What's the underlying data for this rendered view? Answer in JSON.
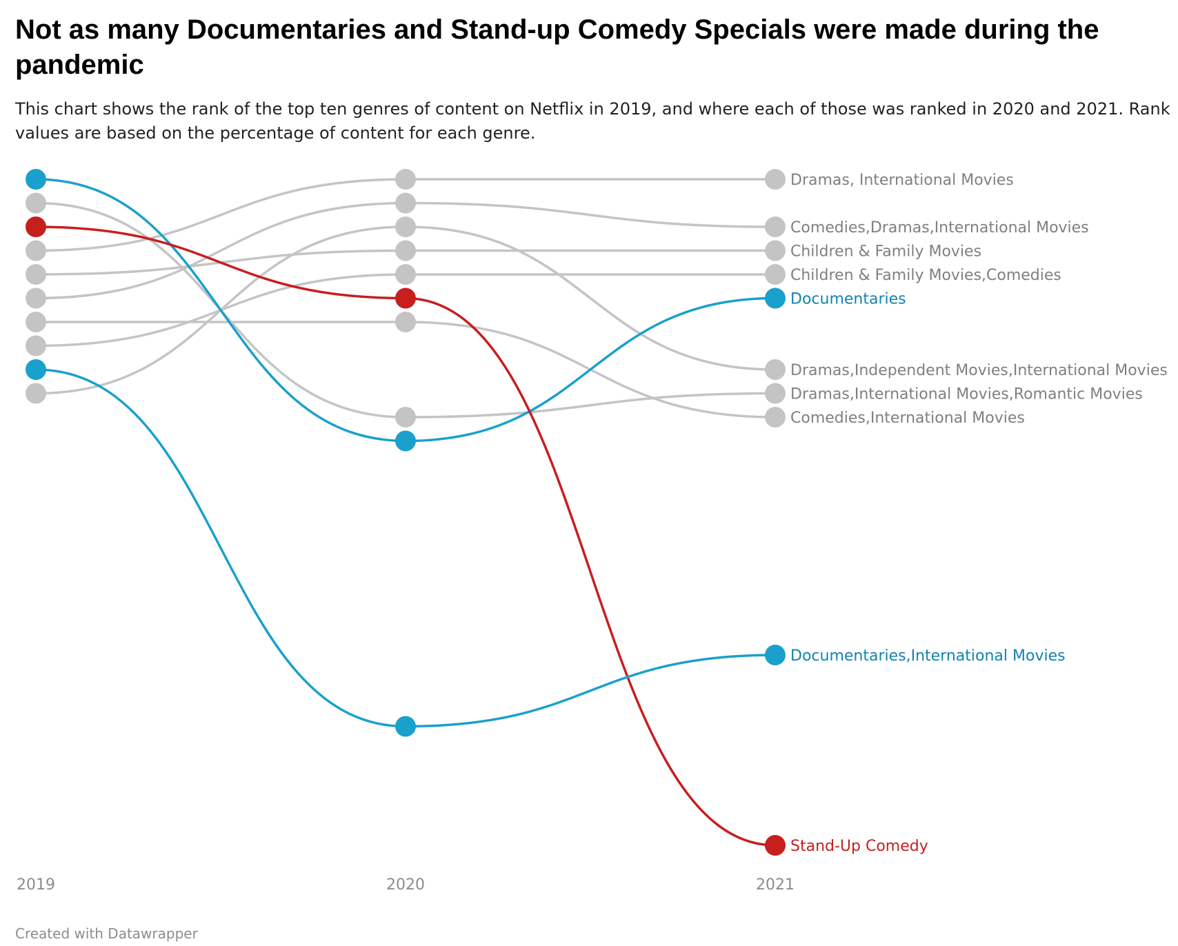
{
  "title": "Not as many Documentaries and Stand-up Comedy Specials were made during the pandemic",
  "subtitle": "This chart shows the rank of the top ten genres of content on Netflix in 2019, and where each of those was ranked in 2020 and 2021. Rank values are based on the percentage of content for each genre.",
  "footer": "Created with Datawrapper",
  "colors": {
    "gray": "#c4c4c4",
    "gray_text": "#7f7f7f",
    "blue": "#1aa0cc",
    "blue_text": "#1183b0",
    "red": "#c71e1e",
    "red_text": "#c71e1e"
  },
  "chart_data": {
    "type": "slope",
    "x": [
      "2019",
      "2020",
      "2021"
    ],
    "y_axis": "rank",
    "y_reversed": true,
    "series": [
      {
        "name": "Documentaries",
        "ranks": [
          1,
          12,
          6
        ],
        "highlight": "blue"
      },
      {
        "name": "Dramas,International Movies,Romantic Movies",
        "ranks": [
          2,
          11,
          10
        ],
        "highlight": "none"
      },
      {
        "name": "Stand-Up Comedy",
        "ranks": [
          3,
          6,
          29
        ],
        "highlight": "red"
      },
      {
        "name": "Dramas, International Movies",
        "ranks": [
          4,
          1,
          1
        ],
        "highlight": "none"
      },
      {
        "name": "Children & Family Movies",
        "ranks": [
          5,
          4,
          4
        ],
        "highlight": "none"
      },
      {
        "name": "Comedies,Dramas,International Movies",
        "ranks": [
          6,
          2,
          3
        ],
        "highlight": "none"
      },
      {
        "name": "Comedies,International Movies",
        "ranks": [
          7,
          7,
          11
        ],
        "highlight": "none"
      },
      {
        "name": "Children & Family Movies,Comedies",
        "ranks": [
          8,
          5,
          5
        ],
        "highlight": "none"
      },
      {
        "name": "Documentaries,International Movies",
        "ranks": [
          9,
          24,
          21
        ],
        "highlight": "blue"
      },
      {
        "name": "Dramas,Independent Movies,International Movies",
        "ranks": [
          10,
          3,
          9
        ],
        "highlight": "none"
      }
    ]
  }
}
